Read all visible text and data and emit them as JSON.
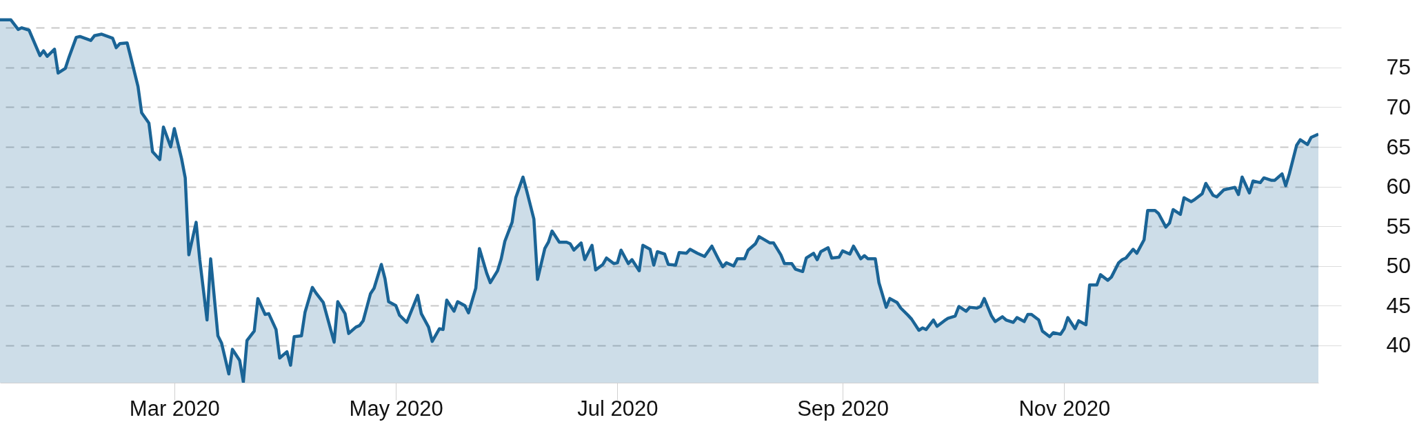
{
  "chart_data": {
    "type": "area",
    "grid": "y",
    "line_style": "solid",
    "xlim": [
      "2020-01-13",
      "2021-01-10"
    ],
    "xticks": [
      {
        "value": "2020-03-01",
        "label": "Mar 2020"
      },
      {
        "value": "2020-05-01",
        "label": "May 2020"
      },
      {
        "value": "2020-07-01",
        "label": "Jul 2020"
      },
      {
        "value": "2020-09-01",
        "label": "Sep 2020"
      },
      {
        "value": "2020-11-01",
        "label": "Nov 2020"
      }
    ],
    "ylim": [
      35.3,
      83.5
    ],
    "yticks": [
      40,
      45,
      50,
      55,
      60,
      65,
      70,
      75,
      {
        "value": 80,
        "label": null
      }
    ],
    "series": [
      {
        "color": "#1a6496",
        "x": [
          "2020-01-13",
          "2020-01-16",
          "2020-01-18",
          "2020-01-19",
          "2020-01-21",
          "2020-01-24",
          "2020-01-25",
          "2020-01-26",
          "2020-01-28",
          "2020-01-29",
          "2020-01-31",
          "2020-02-01",
          "2020-02-03",
          "2020-02-04",
          "2020-02-07",
          "2020-02-08",
          "2020-02-10",
          "2020-02-13",
          "2020-02-14",
          "2020-02-15",
          "2020-02-17",
          "2020-02-18",
          "2020-02-20",
          "2020-02-21",
          "2020-02-23",
          "2020-02-24",
          "2020-02-26",
          "2020-02-27",
          "2020-02-29",
          "2020-03-01",
          "2020-03-03",
          "2020-03-04",
          "2020-03-05",
          "2020-03-07",
          "2020-03-08",
          "2020-03-10",
          "2020-03-11",
          "2020-03-13",
          "2020-03-14",
          "2020-03-16",
          "2020-03-17",
          "2020-03-19",
          "2020-03-20",
          "2020-03-21",
          "2020-03-23",
          "2020-03-24",
          "2020-03-26",
          "2020-03-27",
          "2020-03-29",
          "2020-03-30",
          "2020-04-01",
          "2020-04-02",
          "2020-04-03",
          "2020-04-05",
          "2020-04-06",
          "2020-04-08",
          "2020-04-09",
          "2020-04-11",
          "2020-04-14",
          "2020-04-15",
          "2020-04-17",
          "2020-04-18",
          "2020-04-20",
          "2020-04-21",
          "2020-04-22",
          "2020-04-24",
          "2020-04-25",
          "2020-04-27",
          "2020-04-28",
          "2020-04-29",
          "2020-05-01",
          "2020-05-02",
          "2020-05-04",
          "2020-05-07",
          "2020-05-08",
          "2020-05-10",
          "2020-05-11",
          "2020-05-13",
          "2020-05-14",
          "2020-05-15",
          "2020-05-17",
          "2020-05-18",
          "2020-05-20",
          "2020-05-21",
          "2020-05-23",
          "2020-05-24",
          "2020-05-26",
          "2020-05-27",
          "2020-05-29",
          "2020-05-30",
          "2020-05-31",
          "2020-06-02",
          "2020-06-03",
          "2020-06-05",
          "2020-06-06",
          "2020-06-08",
          "2020-06-09",
          "2020-06-11",
          "2020-06-12",
          "2020-06-13",
          "2020-06-15",
          "2020-06-17",
          "2020-06-18",
          "2020-06-19",
          "2020-06-21",
          "2020-06-22",
          "2020-06-24",
          "2020-06-25",
          "2020-06-27",
          "2020-06-28",
          "2020-06-30",
          "2020-07-01",
          "2020-07-02",
          "2020-07-04",
          "2020-07-05",
          "2020-07-07",
          "2020-07-08",
          "2020-07-10",
          "2020-07-11",
          "2020-07-12",
          "2020-07-14",
          "2020-07-15",
          "2020-07-17",
          "2020-07-18",
          "2020-07-20",
          "2020-07-21",
          "2020-07-23",
          "2020-07-25",
          "2020-07-27",
          "2020-07-29",
          "2020-07-30",
          "2020-07-31",
          "2020-08-02",
          "2020-08-03",
          "2020-08-05",
          "2020-08-06",
          "2020-08-08",
          "2020-08-09",
          "2020-08-12",
          "2020-08-13",
          "2020-08-15",
          "2020-08-16",
          "2020-08-18",
          "2020-08-19",
          "2020-08-21",
          "2020-08-22",
          "2020-08-24",
          "2020-08-25",
          "2020-08-26",
          "2020-08-28",
          "2020-08-29",
          "2020-08-31",
          "2020-09-01",
          "2020-09-03",
          "2020-09-04",
          "2020-09-06",
          "2020-09-07",
          "2020-09-08",
          "2020-09-10",
          "2020-09-11",
          "2020-09-13",
          "2020-09-14",
          "2020-09-16",
          "2020-09-17",
          "2020-09-19",
          "2020-09-20",
          "2020-09-22",
          "2020-09-23",
          "2020-09-24",
          "2020-09-26",
          "2020-09-27",
          "2020-09-29",
          "2020-09-30",
          "2020-10-02",
          "2020-10-03",
          "2020-10-05",
          "2020-10-06",
          "2020-10-08",
          "2020-10-09",
          "2020-10-10",
          "2020-10-12",
          "2020-10-13",
          "2020-10-15",
          "2020-10-16",
          "2020-10-18",
          "2020-10-19",
          "2020-10-21",
          "2020-10-22",
          "2020-10-23",
          "2020-10-25",
          "2020-10-26",
          "2020-10-28",
          "2020-10-29",
          "2020-10-31",
          "2020-11-01",
          "2020-11-02",
          "2020-11-04",
          "2020-11-05",
          "2020-11-07",
          "2020-11-08",
          "2020-11-10",
          "2020-11-11",
          "2020-11-13",
          "2020-11-14",
          "2020-11-16",
          "2020-11-17",
          "2020-11-18",
          "2020-11-20",
          "2020-11-21",
          "2020-11-23",
          "2020-11-24",
          "2020-11-26",
          "2020-11-27",
          "2020-11-29",
          "2020-11-30",
          "2020-12-01",
          "2020-12-03",
          "2020-12-04",
          "2020-12-06",
          "2020-12-07",
          "2020-12-09",
          "2020-12-10",
          "2020-12-12",
          "2020-12-13",
          "2020-12-15",
          "2020-12-16",
          "2020-12-18",
          "2020-12-19",
          "2020-12-20",
          "2020-12-22",
          "2020-12-23",
          "2020-12-25",
          "2020-12-26",
          "2020-12-28",
          "2020-12-29",
          "2020-12-31",
          "2021-01-01",
          "2021-01-02",
          "2021-01-04",
          "2021-01-05",
          "2021-01-07",
          "2021-01-08",
          "2021-01-10"
        ],
        "values": [
          81.0,
          81.0,
          79.8,
          80.0,
          79.7,
          76.5,
          77.1,
          76.4,
          77.3,
          74.3,
          74.9,
          76.3,
          78.8,
          78.9,
          78.4,
          79.0,
          79.2,
          78.7,
          77.5,
          78.0,
          78.1,
          76.3,
          72.6,
          69.3,
          68.0,
          64.4,
          63.4,
          67.5,
          65.0,
          67.3,
          63.5,
          61.1,
          51.4,
          55.5,
          50.8,
          43.2,
          50.9,
          41.2,
          40.3,
          36.4,
          39.5,
          38.1,
          35.4,
          40.6,
          41.8,
          45.9,
          43.9,
          44.0,
          42.0,
          38.4,
          39.2,
          37.5,
          41.1,
          41.2,
          44.2,
          47.3,
          46.6,
          45.4,
          40.4,
          45.5,
          44.0,
          41.5,
          42.3,
          42.5,
          43.1,
          46.5,
          47.2,
          50.2,
          48.4,
          45.5,
          45.0,
          43.8,
          42.9,
          46.3,
          44.0,
          42.3,
          40.5,
          42.1,
          42.0,
          45.7,
          44.3,
          45.5,
          45.0,
          44.1,
          47.2,
          52.2,
          49.1,
          47.9,
          49.4,
          50.9,
          53.1,
          55.5,
          58.6,
          61.2,
          59.5,
          55.9,
          48.3,
          52.2,
          53.0,
          54.4,
          53.0,
          53.0,
          52.8,
          52.0,
          52.9,
          50.8,
          52.6,
          49.5,
          50.2,
          51.0,
          50.3,
          50.4,
          52.0,
          50.3,
          50.8,
          49.4,
          52.6,
          52.1,
          50.1,
          51.8,
          51.5,
          50.2,
          50.1,
          51.7,
          51.6,
          52.1,
          51.6,
          51.2,
          52.5,
          50.7,
          49.9,
          50.4,
          50.0,
          50.9,
          50.9,
          52.0,
          52.8,
          53.7,
          52.9,
          52.9,
          51.4,
          50.3,
          50.3,
          49.6,
          49.3,
          51.0,
          51.6,
          50.8,
          51.8,
          52.3,
          51.0,
          51.1,
          51.9,
          51.5,
          52.5,
          50.9,
          51.3,
          50.9,
          50.9,
          47.9,
          44.8,
          45.9,
          45.4,
          44.7,
          43.8,
          43.3,
          41.9,
          42.2,
          42.0,
          43.2,
          42.4,
          43.1,
          43.4,
          43.7,
          44.9,
          44.3,
          44.8,
          44.7,
          44.9,
          45.9,
          43.7,
          43.0,
          43.6,
          43.2,
          42.9,
          43.5,
          43.0,
          43.9,
          43.9,
          43.2,
          41.8,
          41.1,
          41.6,
          41.4,
          42.1,
          43.5,
          42.1,
          43.1,
          42.6,
          47.6,
          47.6,
          48.9,
          48.2,
          48.6,
          50.4,
          50.8,
          51.0,
          52.1,
          51.6,
          53.3,
          57.0,
          57.0,
          56.6,
          54.9,
          55.4,
          57.1,
          56.5,
          58.6,
          58.1,
          58.4,
          59.1,
          60.4,
          58.9,
          58.7,
          59.6,
          59.7,
          59.9,
          59.0,
          61.2,
          59.2,
          60.7,
          60.5,
          61.1,
          60.8,
          60.8,
          61.6,
          60.1,
          61.6,
          65.2,
          65.9,
          65.3,
          66.2,
          66.6
        ]
      }
    ]
  }
}
